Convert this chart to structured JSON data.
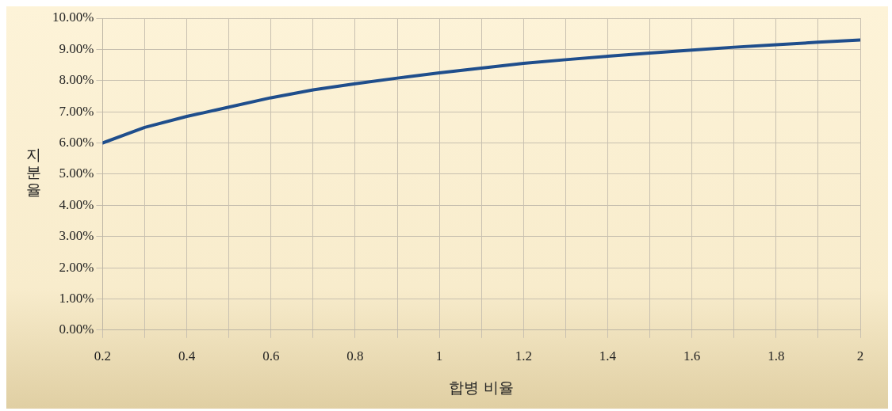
{
  "chart_data": {
    "type": "line",
    "xlabel": "합병 비율",
    "ylabel": "지분율",
    "x": [
      0.2,
      0.3,
      0.4,
      0.5,
      0.6,
      0.7,
      0.8,
      0.9,
      1.0,
      1.1,
      1.2,
      1.3,
      1.4,
      1.5,
      1.6,
      1.7,
      1.8,
      1.9,
      2.0
    ],
    "series": [
      {
        "color": "#1f4e8c",
        "values": [
          6.0,
          6.5,
          6.85,
          7.15,
          7.45,
          7.7,
          7.9,
          8.08,
          8.25,
          8.4,
          8.55,
          8.67,
          8.78,
          8.88,
          8.98,
          9.07,
          9.15,
          9.23,
          9.3
        ]
      }
    ],
    "xlim": [
      0.2,
      2
    ],
    "ylim": [
      0,
      10
    ],
    "xticks": [
      {
        "value": 0.2,
        "label": "0.2"
      },
      {
        "value": 0.3,
        "label": null
      },
      {
        "value": 0.4,
        "label": "0.4"
      },
      {
        "value": 0.5,
        "label": null
      },
      {
        "value": 0.6,
        "label": "0.6"
      },
      {
        "value": 0.7,
        "label": null
      },
      {
        "value": 0.8,
        "label": "0.8"
      },
      {
        "value": 0.9,
        "label": null
      },
      {
        "value": 1,
        "label": "1"
      },
      {
        "value": 1.1,
        "label": null
      },
      {
        "value": 1.2,
        "label": "1.2"
      },
      {
        "value": 1.3,
        "label": null
      },
      {
        "value": 1.4,
        "label": "1.4"
      },
      {
        "value": 1.5,
        "label": null
      },
      {
        "value": 1.6,
        "label": "1.6"
      },
      {
        "value": 1.7,
        "label": null
      },
      {
        "value": 1.8,
        "label": "1.8"
      },
      {
        "value": 1.9,
        "label": null
      },
      {
        "value": 2,
        "label": "2"
      }
    ],
    "yticks": [
      {
        "value": 0,
        "label": "0.00%"
      },
      {
        "value": 1,
        "label": "1.00%"
      },
      {
        "value": 2,
        "label": "2.00%"
      },
      {
        "value": 3,
        "label": "3.00%"
      },
      {
        "value": 4,
        "label": "4.00%"
      },
      {
        "value": 5,
        "label": "5.00%"
      },
      {
        "value": 6,
        "label": "6.00%"
      },
      {
        "value": 7,
        "label": "7.00%"
      },
      {
        "value": 8,
        "label": "8.00%"
      },
      {
        "value": 9,
        "label": "9.00%"
      },
      {
        "value": 10,
        "label": "10.00%"
      }
    ],
    "grid": true,
    "marker": "none",
    "line_style": "solid",
    "legend": false
  }
}
